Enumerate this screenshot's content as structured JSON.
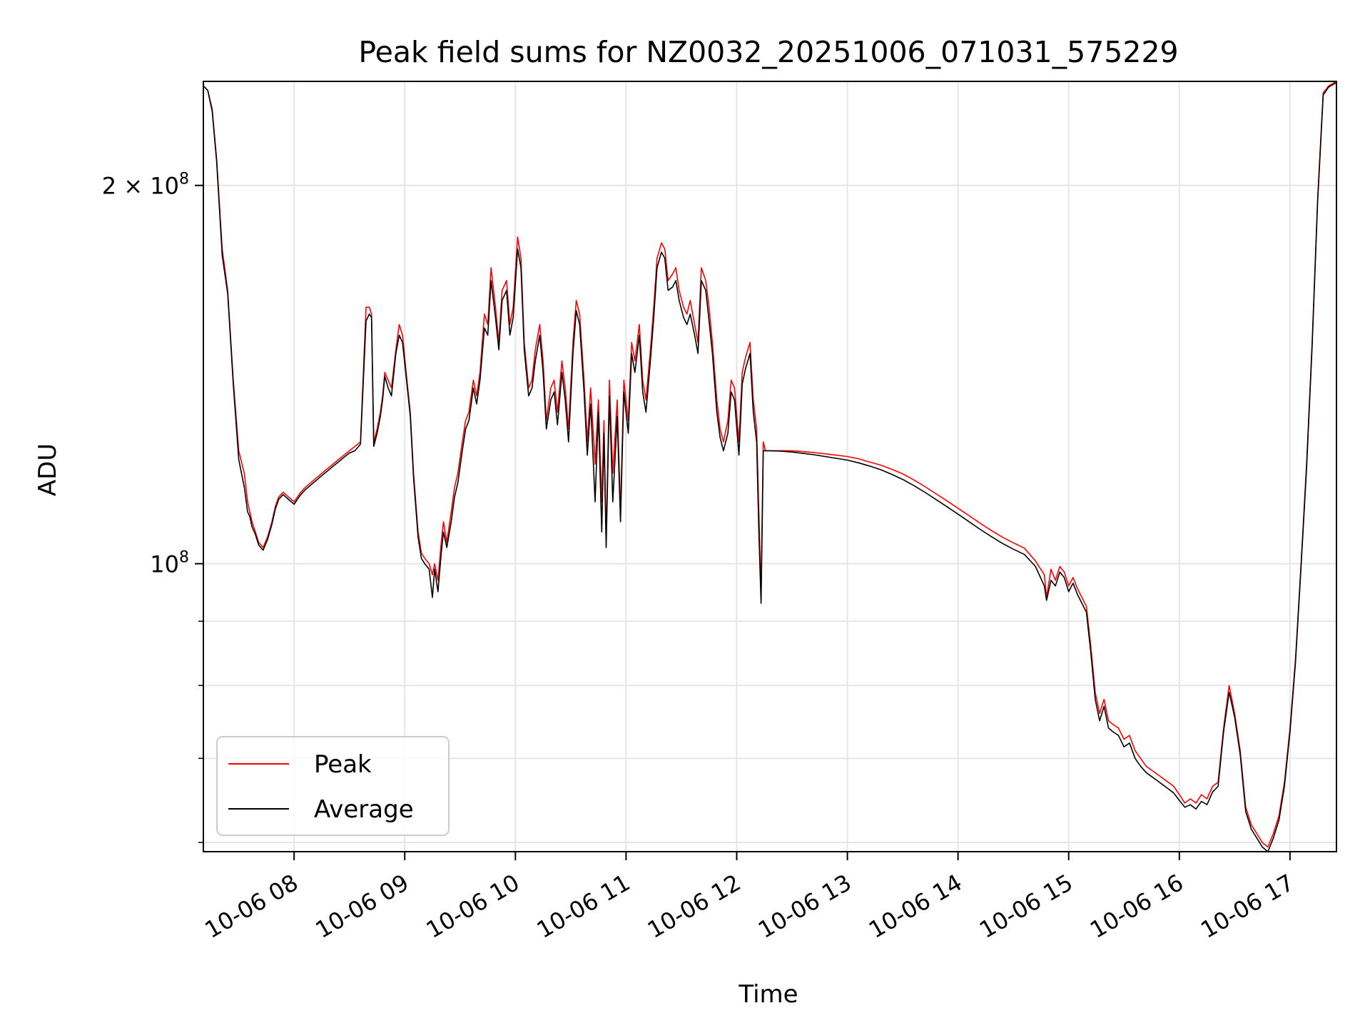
{
  "chart_data": {
    "type": "line",
    "title": "Peak field sums for NZ0032_20251006_071031_575229",
    "xlabel": "Time",
    "ylabel": "ADU",
    "x_unit": "hours (local time of day, 2025-10-06)",
    "xlim": [
      7.18,
      17.42
    ],
    "ylim": [
      59000000,
      242000000
    ],
    "y_scale": "log",
    "x_ticks": [
      {
        "value": 8,
        "label": "10-06 08"
      },
      {
        "value": 9,
        "label": "10-06 09"
      },
      {
        "value": 10,
        "label": "10-06 10"
      },
      {
        "value": 11,
        "label": "10-06 11"
      },
      {
        "value": 12,
        "label": "10-06 12"
      },
      {
        "value": 13,
        "label": "10-06 13"
      },
      {
        "value": 14,
        "label": "10-06 14"
      },
      {
        "value": 15,
        "label": "10-06 15"
      },
      {
        "value": 16,
        "label": "10-06 16"
      },
      {
        "value": 17,
        "label": "10-06 17"
      }
    ],
    "y_ticks": [
      {
        "value": 100000000,
        "base": "10",
        "exp": "8",
        "mantissa": ""
      },
      {
        "value": 200000000,
        "base": "10",
        "exp": "8",
        "mantissa": "2 × "
      }
    ],
    "y_minor": [
      60000000,
      70000000,
      80000000,
      90000000
    ],
    "grid": true,
    "legend_position": "lower-left",
    "series": [
      {
        "name": "Peak",
        "color": "#ff0000",
        "x": [
          7.18,
          7.22,
          7.26,
          7.3,
          7.35,
          7.4,
          7.45,
          7.5,
          7.55,
          7.58,
          7.6,
          7.62,
          7.65,
          7.68,
          7.72,
          7.76,
          7.8,
          7.83,
          7.86,
          7.9,
          7.95,
          8.0,
          8.03,
          8.06,
          8.1,
          8.15,
          8.2,
          8.25,
          8.3,
          8.35,
          8.4,
          8.45,
          8.5,
          8.55,
          8.6,
          8.65,
          8.68,
          8.7,
          8.72,
          8.75,
          8.78,
          8.8,
          8.82,
          8.85,
          8.88,
          8.92,
          8.95,
          8.98,
          9.02,
          9.05,
          9.08,
          9.12,
          9.15,
          9.18,
          9.22,
          9.25,
          9.27,
          9.3,
          9.33,
          9.35,
          9.38,
          9.42,
          9.45,
          9.48,
          9.52,
          9.55,
          9.58,
          9.62,
          9.65,
          9.68,
          9.72,
          9.75,
          9.78,
          9.82,
          9.85,
          9.88,
          9.92,
          9.95,
          9.98,
          10.02,
          10.05,
          10.08,
          10.12,
          10.15,
          10.18,
          10.22,
          10.25,
          10.28,
          10.32,
          10.35,
          10.38,
          10.42,
          10.45,
          10.48,
          10.52,
          10.55,
          10.58,
          10.62,
          10.65,
          10.68,
          10.72,
          10.75,
          10.78,
          10.8,
          10.82,
          10.85,
          10.88,
          10.92,
          10.95,
          10.98,
          11.02,
          11.05,
          11.08,
          11.12,
          11.15,
          11.18,
          11.22,
          11.25,
          11.28,
          11.32,
          11.35,
          11.38,
          11.42,
          11.45,
          11.48,
          11.52,
          11.55,
          11.58,
          11.62,
          11.65,
          11.68,
          11.72,
          11.75,
          11.78,
          11.82,
          11.85,
          11.88,
          11.92,
          11.95,
          11.98,
          12.02,
          12.05,
          12.08,
          12.12,
          12.15,
          12.18,
          12.2,
          12.22,
          12.24,
          12.26,
          12.28,
          12.3,
          12.4,
          12.5,
          12.6,
          12.7,
          12.8,
          12.9,
          13.0,
          13.1,
          13.2,
          13.3,
          13.4,
          13.5,
          13.6,
          13.7,
          13.8,
          13.9,
          14.0,
          14.1,
          14.2,
          14.3,
          14.4,
          14.5,
          14.6,
          14.7,
          14.78,
          14.8,
          14.84,
          14.88,
          14.92,
          14.96,
          15.0,
          15.04,
          15.08,
          15.12,
          15.16,
          15.2,
          15.24,
          15.28,
          15.32,
          15.36,
          15.4,
          15.45,
          15.5,
          15.55,
          15.6,
          15.65,
          15.7,
          15.75,
          15.8,
          15.85,
          15.9,
          15.95,
          16.0,
          16.05,
          16.1,
          16.15,
          16.2,
          16.25,
          16.3,
          16.35,
          16.4,
          16.45,
          16.5,
          16.55,
          16.6,
          16.65,
          16.7,
          16.75,
          16.8,
          16.85,
          16.9,
          16.95,
          17.0,
          17.05,
          17.1,
          17.15,
          17.2,
          17.25,
          17.3,
          17.35,
          17.42
        ],
        "y": [
          240000000,
          238000000,
          230000000,
          210000000,
          178000000,
          165000000,
          140000000,
          123000000,
          118000000,
          112000000,
          110000000,
          108000000,
          106000000,
          104000000,
          103000000,
          105000000,
          108000000,
          111000000,
          113000000,
          114000000,
          113000000,
          112000000,
          113000000,
          114000000,
          115000000,
          116000000,
          117000000,
          118000000,
          119000000,
          120000000,
          121000000,
          122000000,
          123000000,
          124000000,
          125000000,
          160000000,
          160000000,
          158000000,
          125000000,
          128000000,
          132000000,
          136000000,
          142000000,
          140000000,
          138000000,
          148000000,
          155000000,
          152000000,
          140000000,
          132000000,
          118000000,
          106000000,
          102000000,
          101000000,
          100000000,
          98000000,
          100000000,
          97000000,
          104000000,
          108000000,
          104000000,
          110000000,
          115000000,
          118000000,
          125000000,
          130000000,
          132000000,
          140000000,
          136000000,
          142000000,
          158000000,
          155000000,
          172000000,
          160000000,
          150000000,
          165000000,
          168000000,
          155000000,
          160000000,
          182000000,
          175000000,
          150000000,
          138000000,
          140000000,
          148000000,
          155000000,
          145000000,
          130000000,
          138000000,
          140000000,
          132000000,
          145000000,
          138000000,
          128000000,
          150000000,
          162000000,
          158000000,
          140000000,
          125000000,
          138000000,
          120000000,
          135000000,
          112000000,
          130000000,
          105000000,
          140000000,
          118000000,
          135000000,
          110000000,
          140000000,
          130000000,
          150000000,
          145000000,
          155000000,
          140000000,
          135000000,
          148000000,
          160000000,
          175000000,
          180000000,
          178000000,
          168000000,
          170000000,
          172000000,
          165000000,
          160000000,
          158000000,
          162000000,
          155000000,
          150000000,
          172000000,
          168000000,
          160000000,
          150000000,
          135000000,
          128000000,
          125000000,
          130000000,
          140000000,
          138000000,
          125000000,
          142000000,
          146000000,
          150000000,
          135000000,
          128000000,
          110000000,
          95000000,
          125000000,
          123000000,
          123000000,
          123000000,
          123000000,
          123000000,
          122800000,
          122600000,
          122300000,
          122000000,
          121700000,
          121200000,
          120500000,
          119800000,
          118900000,
          117900000,
          116600000,
          115200000,
          113700000,
          112200000,
          110700000,
          109200000,
          107700000,
          106300000,
          105000000,
          103900000,
          102900000,
          100500000,
          98000000,
          94000000,
          99000000,
          97000000,
          99500000,
          98500000,
          96000000,
          97500000,
          95500000,
          94000000,
          92500000,
          86000000,
          79000000,
          76000000,
          78000000,
          75000000,
          74500000,
          74000000,
          72500000,
          73000000,
          71000000,
          70000000,
          69000000,
          68500000,
          68000000,
          67500000,
          67000000,
          66500000,
          65500000,
          64500000,
          65000000,
          64500000,
          65500000,
          65000000,
          66500000,
          67000000,
          74000000,
          80000000,
          76000000,
          71000000,
          64000000,
          62000000,
          61000000,
          60000000,
          59500000,
          61000000,
          63000000,
          67000000,
          74000000,
          84000000,
          100000000,
          120000000,
          150000000,
          195000000,
          237000000,
          240000000,
          242000000
        ]
      },
      {
        "name": "Average",
        "color": "#000000",
        "x": [
          7.18,
          7.22,
          7.26,
          7.3,
          7.35,
          7.4,
          7.45,
          7.5,
          7.55,
          7.58,
          7.6,
          7.62,
          7.65,
          7.68,
          7.72,
          7.76,
          7.8,
          7.83,
          7.86,
          7.9,
          7.95,
          8.0,
          8.03,
          8.06,
          8.1,
          8.15,
          8.2,
          8.25,
          8.3,
          8.35,
          8.4,
          8.45,
          8.5,
          8.55,
          8.6,
          8.65,
          8.68,
          8.7,
          8.72,
          8.75,
          8.78,
          8.8,
          8.82,
          8.85,
          8.88,
          8.92,
          8.95,
          8.98,
          9.02,
          9.05,
          9.08,
          9.12,
          9.15,
          9.18,
          9.22,
          9.25,
          9.27,
          9.3,
          9.33,
          9.35,
          9.38,
          9.42,
          9.45,
          9.48,
          9.52,
          9.55,
          9.58,
          9.62,
          9.65,
          9.68,
          9.72,
          9.75,
          9.78,
          9.82,
          9.85,
          9.88,
          9.92,
          9.95,
          9.98,
          10.02,
          10.05,
          10.08,
          10.12,
          10.15,
          10.18,
          10.22,
          10.25,
          10.28,
          10.32,
          10.35,
          10.38,
          10.42,
          10.45,
          10.48,
          10.52,
          10.55,
          10.58,
          10.62,
          10.65,
          10.68,
          10.72,
          10.75,
          10.78,
          10.8,
          10.82,
          10.85,
          10.88,
          10.92,
          10.95,
          10.98,
          11.02,
          11.05,
          11.08,
          11.12,
          11.15,
          11.18,
          11.22,
          11.25,
          11.28,
          11.32,
          11.35,
          11.38,
          11.42,
          11.45,
          11.48,
          11.52,
          11.55,
          11.58,
          11.62,
          11.65,
          11.68,
          11.72,
          11.75,
          11.78,
          11.82,
          11.85,
          11.88,
          11.92,
          11.95,
          11.98,
          12.02,
          12.05,
          12.08,
          12.12,
          12.15,
          12.18,
          12.2,
          12.22,
          12.24,
          12.26,
          12.28,
          12.3,
          12.4,
          12.5,
          12.6,
          12.7,
          12.8,
          12.9,
          13.0,
          13.1,
          13.2,
          13.3,
          13.4,
          13.5,
          13.6,
          13.7,
          13.8,
          13.9,
          14.0,
          14.1,
          14.2,
          14.3,
          14.4,
          14.5,
          14.6,
          14.7,
          14.78,
          14.8,
          14.84,
          14.88,
          14.92,
          14.96,
          15.0,
          15.04,
          15.08,
          15.12,
          15.16,
          15.2,
          15.24,
          15.28,
          15.32,
          15.36,
          15.4,
          15.45,
          15.5,
          15.55,
          15.6,
          15.65,
          15.7,
          15.75,
          15.8,
          15.85,
          15.9,
          15.95,
          16.0,
          16.05,
          16.1,
          16.15,
          16.2,
          16.25,
          16.3,
          16.35,
          16.4,
          16.45,
          16.5,
          16.55,
          16.6,
          16.65,
          16.7,
          16.75,
          16.8,
          16.85,
          16.9,
          16.95,
          17.0,
          17.05,
          17.1,
          17.15,
          17.2,
          17.25,
          17.3,
          17.35,
          17.42
        ],
        "y": [
          240000000,
          238000000,
          229000000,
          209000000,
          176000000,
          164000000,
          139000000,
          121000000,
          115000000,
          110000000,
          109000000,
          107000000,
          105500000,
          103500000,
          102500000,
          104500000,
          107500000,
          110500000,
          112500000,
          113500000,
          112500000,
          111500000,
          112500000,
          113500000,
          114500000,
          115500000,
          116500000,
          117500000,
          118500000,
          119500000,
          120500000,
          121500000,
          122500000,
          123000000,
          124500000,
          156000000,
          158000000,
          157000000,
          124000000,
          127000000,
          131000000,
          135000000,
          141000000,
          138000000,
          136000000,
          147000000,
          152000000,
          150000000,
          139000000,
          131000000,
          117000000,
          105000000,
          101000000,
          100000000,
          99000000,
          94000000,
          99000000,
          95000000,
          102000000,
          106000000,
          103000000,
          108000000,
          113000000,
          116000000,
          123000000,
          128000000,
          130000000,
          138000000,
          134000000,
          140000000,
          154000000,
          152000000,
          168000000,
          157000000,
          148000000,
          162000000,
          165000000,
          152000000,
          157000000,
          178000000,
          172000000,
          148000000,
          136000000,
          138000000,
          145000000,
          152000000,
          142000000,
          128000000,
          135000000,
          137000000,
          129000000,
          142000000,
          135000000,
          125000000,
          147000000,
          159000000,
          155000000,
          137000000,
          122000000,
          134000000,
          112000000,
          132000000,
          106000000,
          127000000,
          103000000,
          136000000,
          112000000,
          131000000,
          108000000,
          137000000,
          127000000,
          147000000,
          142000000,
          152000000,
          137000000,
          132000000,
          145000000,
          157000000,
          172000000,
          177000000,
          175000000,
          165000000,
          166000000,
          168000000,
          162000000,
          157000000,
          155000000,
          158000000,
          152000000,
          147000000,
          168000000,
          165000000,
          156000000,
          147000000,
          132000000,
          126000000,
          123000000,
          127000000,
          137000000,
          135000000,
          122000000,
          139000000,
          143000000,
          147000000,
          132000000,
          125000000,
          106000000,
          93000000,
          123000000,
          123000000,
          123000000,
          123000000,
          122900000,
          122700000,
          122400000,
          122100000,
          121700000,
          121300000,
          120900000,
          120300000,
          119600000,
          118800000,
          117800000,
          116700000,
          115400000,
          114000000,
          112500000,
          111000000,
          109500000,
          108000000,
          106500000,
          105100000,
          103800000,
          102700000,
          101700000,
          99500000,
          96000000,
          93500000,
          97000000,
          96000000,
          98500000,
          97500000,
          95000000,
          96500000,
          94500000,
          93000000,
          91500000,
          85000000,
          78000000,
          75000000,
          77000000,
          74000000,
          73500000,
          73000000,
          71500000,
          72000000,
          70000000,
          69000000,
          68200000,
          67700000,
          67200000,
          66700000,
          66200000,
          65700000,
          64800000,
          64000000,
          64300000,
          63800000,
          64700000,
          64300000,
          65800000,
          66500000,
          73500000,
          79000000,
          75500000,
          70500000,
          63500000,
          61500000,
          60500000,
          59500000,
          59000000,
          60500000,
          62500000,
          66500000,
          73500000,
          83500000,
          99500000,
          119000000,
          149000000,
          194000000,
          236000000,
          239500000,
          241500000
        ]
      }
    ]
  }
}
